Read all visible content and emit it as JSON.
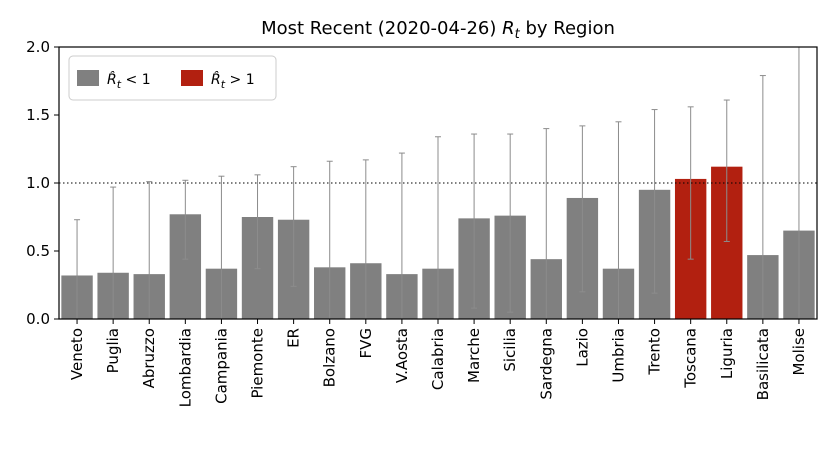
{
  "chart_data": {
    "type": "bar",
    "title_prefix": "Most Recent (2020-04-26) ",
    "title_symbol": "R",
    "title_subscript": "t",
    "title_suffix": " by Region",
    "xlabel": "",
    "ylabel": "",
    "ylim": [
      0,
      2.0
    ],
    "yticks": [
      "0.0",
      "0.5",
      "1.0",
      "1.5",
      "2.0"
    ],
    "reference_line": 1.0,
    "grid": false,
    "legend_position": "top-left",
    "legend": [
      {
        "symbol": "R̂",
        "subscript": "t",
        "relation": " < 1",
        "color": "#808080"
      },
      {
        "symbol": "R̂",
        "subscript": "t",
        "relation": " > 1",
        "color": "#b22010"
      }
    ],
    "colors": {
      "below": "#808080",
      "above": "#b22010",
      "errorbar": "#8c8c8c"
    },
    "categories": [
      "Veneto",
      "Puglia",
      "Abruzzo",
      "Lombardia",
      "Campania",
      "Piemonte",
      "ER",
      "Bolzano",
      "FVG",
      "V.Aosta",
      "Calabria",
      "Marche",
      "Sicilia",
      "Sardegna",
      "Lazio",
      "Umbria",
      "Trento",
      "Toscana",
      "Liguria",
      "Basilicata",
      "Molise"
    ],
    "values": [
      0.32,
      0.34,
      0.33,
      0.77,
      0.37,
      0.75,
      0.73,
      0.38,
      0.41,
      0.33,
      0.37,
      0.74,
      0.76,
      0.44,
      0.89,
      0.37,
      0.95,
      1.03,
      1.12,
      0.47,
      0.65
    ],
    "lower": [
      0.0,
      0.0,
      0.0,
      0.44,
      0.0,
      0.37,
      0.24,
      0.0,
      0.0,
      0.0,
      0.0,
      0.08,
      0.05,
      0.0,
      0.2,
      0.0,
      0.19,
      0.44,
      0.57,
      0.0,
      0.0
    ],
    "upper": [
      0.73,
      0.97,
      1.01,
      1.02,
      1.05,
      1.06,
      1.12,
      1.16,
      1.17,
      1.22,
      1.34,
      1.36,
      1.36,
      1.4,
      1.42,
      1.45,
      1.54,
      1.56,
      1.61,
      1.79,
      2.0
    ]
  }
}
